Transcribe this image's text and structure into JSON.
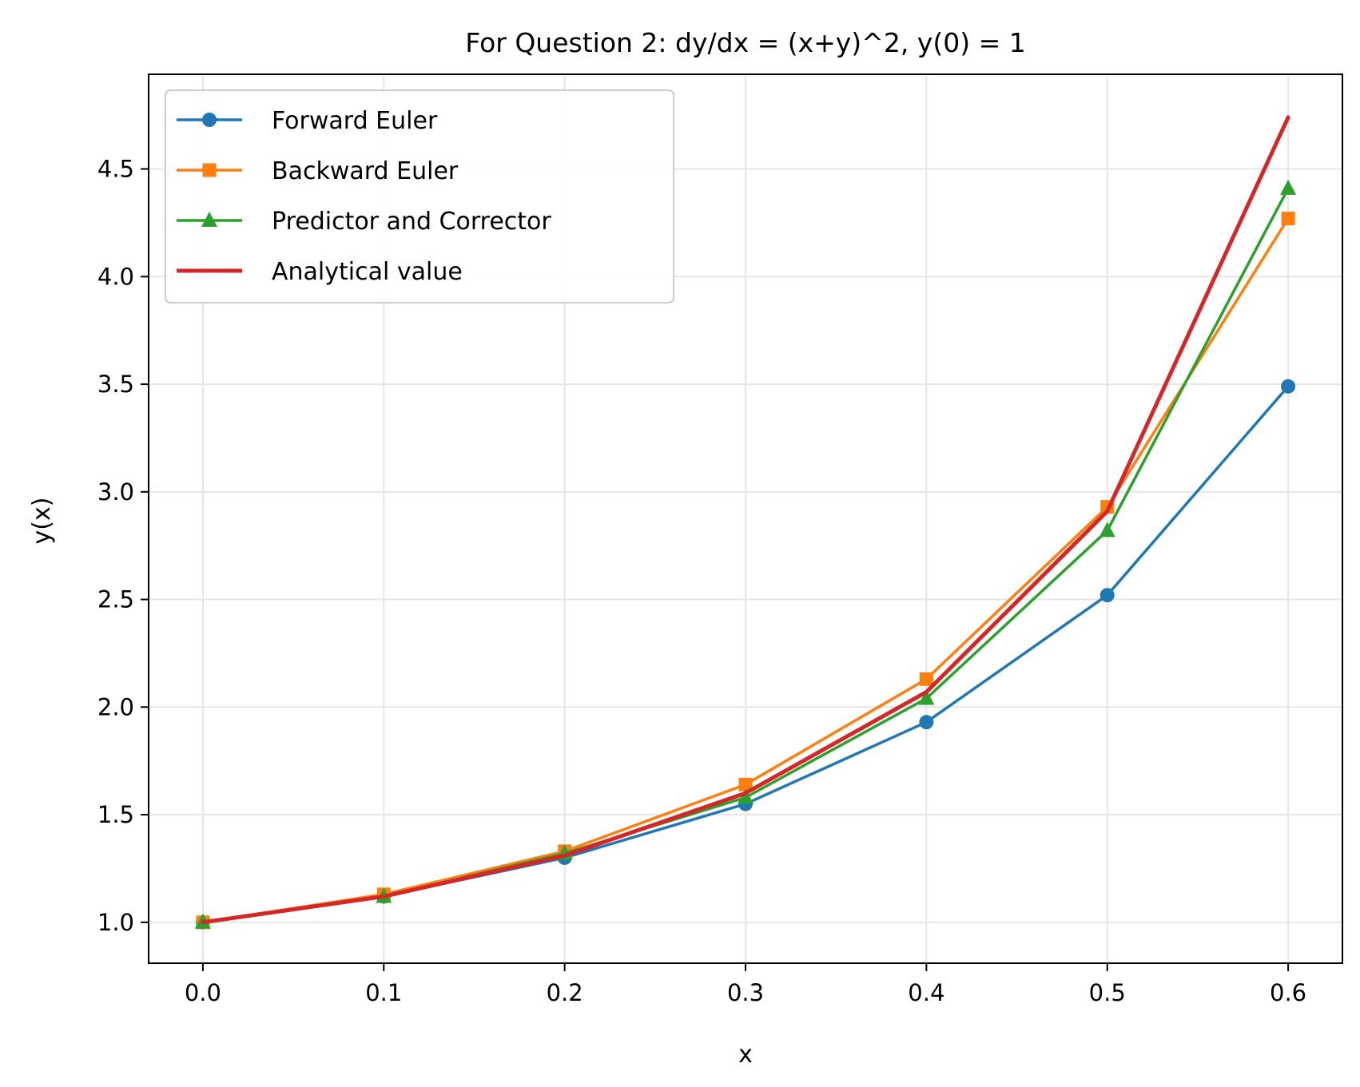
{
  "chart_data": {
    "type": "line",
    "title": "For Question 2: dy/dx = (x+y)^2, y(0) = 1",
    "xlabel": "x",
    "ylabel": "y(x)",
    "xlim": [
      -0.03,
      0.63
    ],
    "ylim": [
      0.81,
      4.94
    ],
    "xticks": [
      0.0,
      0.1,
      0.2,
      0.3,
      0.4,
      0.5,
      0.6
    ],
    "xtick_labels": [
      "0.0",
      "0.1",
      "0.2",
      "0.3",
      "0.4",
      "0.5",
      "0.6"
    ],
    "yticks": [
      1.0,
      1.5,
      2.0,
      2.5,
      3.0,
      3.5,
      4.0,
      4.5
    ],
    "ytick_labels": [
      "1.0",
      "1.5",
      "2.0",
      "2.5",
      "3.0",
      "3.5",
      "4.0",
      "4.5"
    ],
    "grid": true,
    "legend_position": "top-left",
    "x": [
      0.0,
      0.1,
      0.2,
      0.3,
      0.4,
      0.5,
      0.6
    ],
    "series": [
      {
        "name": "Forward Euler",
        "color": "#1f77b4",
        "marker": "circle",
        "values": [
          1.0,
          1.12,
          1.3,
          1.55,
          1.93,
          2.52,
          3.49
        ]
      },
      {
        "name": "Backward Euler",
        "color": "#ff7f0e",
        "marker": "square",
        "values": [
          1.0,
          1.13,
          1.33,
          1.64,
          2.13,
          2.93,
          4.27
        ]
      },
      {
        "name": "Predictor and Corrector",
        "color": "#2ca02c",
        "marker": "triangle",
        "values": [
          1.0,
          1.12,
          1.32,
          1.58,
          2.04,
          2.82,
          4.41
        ]
      },
      {
        "name": "Analytical value",
        "color": "#d62728",
        "marker": "none",
        "values": [
          1.0,
          1.12,
          1.31,
          1.6,
          2.07,
          2.91,
          4.74
        ]
      }
    ]
  }
}
